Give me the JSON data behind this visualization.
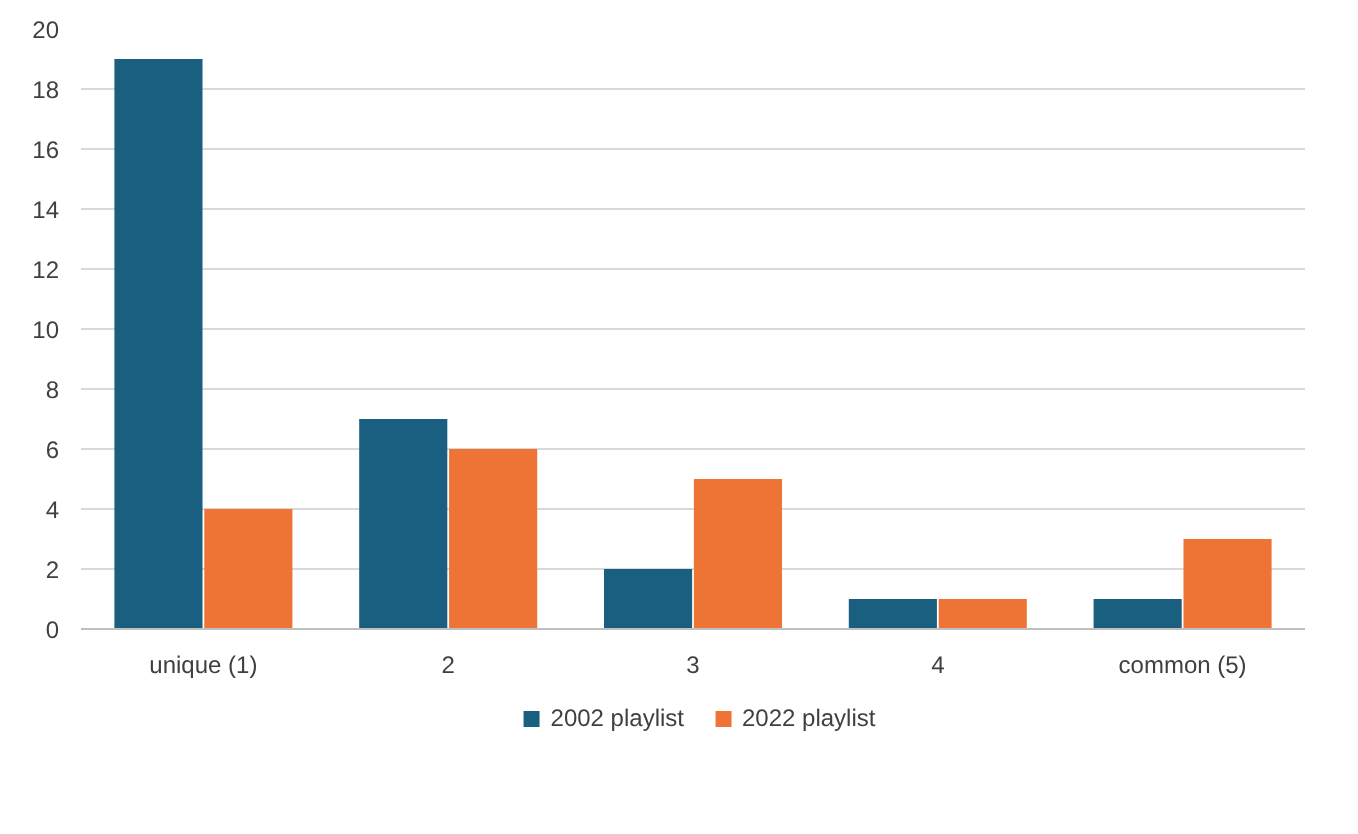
{
  "chart_data": {
    "type": "bar",
    "categories": [
      "unique (1)",
      "2",
      "3",
      "4",
      "common (5)"
    ],
    "series": [
      {
        "name": "2002 playlist",
        "color": "#1a5f80",
        "values": [
          19,
          7,
          2,
          1,
          1
        ]
      },
      {
        "name": "2022 playlist",
        "color": "#ed7434",
        "values": [
          4,
          6,
          5,
          1,
          3
        ]
      }
    ],
    "ylim": [
      0,
      20
    ],
    "yticks": [
      0,
      2,
      4,
      6,
      8,
      10,
      12,
      14,
      16,
      18,
      20
    ],
    "grid": "y",
    "legend": "bottom"
  }
}
